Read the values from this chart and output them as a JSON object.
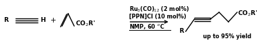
{
  "bg_color": "#ffffff",
  "text_color": "#000000",
  "figsize": [
    3.78,
    0.63
  ],
  "dpi": 100,
  "conditions": {
    "text1": "Ru$_3$(CO)$_{12}$ (2 mol%)",
    "text2": "[PPN]Cl (10 mol%)",
    "text3": "NMP, 60 $^o$C"
  },
  "yield_text": "up to 95% yield"
}
